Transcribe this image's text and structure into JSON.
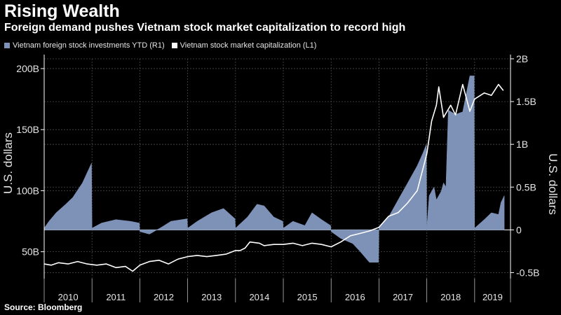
{
  "header": {
    "title": "Rising Wealth",
    "subtitle": "Foreign demand pushes Vietnam stock market capitalization to record high"
  },
  "footer": {
    "source": "Source: Bloomberg"
  },
  "colors": {
    "background": "#000000",
    "bars": "#7d92b6",
    "line": "#ffffff",
    "grid": "#4a4a4a",
    "text": "#e6e6e6"
  },
  "chart_data": {
    "type": "area",
    "legend": [
      {
        "label": "Vietnam foreign stock investments YTD (R1)",
        "color": "#7d92b6"
      },
      {
        "label": "Vietnam stock market capitalization (L1)",
        "color": "#ffffff"
      }
    ],
    "legend_position": "top-left",
    "grid": true,
    "x_ticks": [
      "2010",
      "2011",
      "2012",
      "2013",
      "2014",
      "2015",
      "2016",
      "2017",
      "2018",
      "2019"
    ],
    "xlim": [
      2010,
      2019.75
    ],
    "left_axis": {
      "label": "U.S. dollars",
      "ticks": [
        "50B",
        "100B",
        "150B",
        "200B"
      ],
      "ylim": [
        28,
        208
      ]
    },
    "right_axis": {
      "label": "U.S. dollars",
      "ticks": [
        "-0.5B",
        "0",
        "0.5B",
        "1B",
        "1.5B",
        "2B"
      ],
      "ylim": [
        -0.57,
        2.0
      ]
    },
    "series": [
      {
        "name": "Vietnam foreign stock investments YTD (R1)",
        "type": "area",
        "axis": "right",
        "x": [
          2010.0,
          2010.1,
          2010.25,
          2010.45,
          2010.6,
          2010.8,
          2010.99,
          2011.0,
          2011.2,
          2011.5,
          2011.8,
          2011.99,
          2012.0,
          2012.2,
          2012.45,
          2012.65,
          2012.99,
          2013.0,
          2013.2,
          2013.5,
          2013.75,
          2013.99,
          2014.0,
          2014.25,
          2014.45,
          2014.6,
          2014.8,
          2014.99,
          2015.0,
          2015.2,
          2015.45,
          2015.6,
          2015.8,
          2015.99,
          2016.0,
          2016.2,
          2016.45,
          2016.6,
          2016.8,
          2016.99,
          2017.0,
          2017.2,
          2017.4,
          2017.6,
          2017.8,
          2017.92,
          2017.99,
          2018.0,
          2018.05,
          2018.15,
          2018.2,
          2018.3,
          2018.35,
          2018.4,
          2018.45,
          2018.6,
          2018.75,
          2018.9,
          2018.99,
          2019.0,
          2019.2,
          2019.35,
          2019.5,
          2019.55,
          2019.62
        ],
        "values": [
          0.02,
          0.1,
          0.2,
          0.3,
          0.38,
          0.55,
          0.78,
          0.02,
          0.08,
          0.12,
          0.1,
          0.08,
          -0.02,
          -0.05,
          0.03,
          0.1,
          0.13,
          0.02,
          0.1,
          0.2,
          0.25,
          0.13,
          0.02,
          0.15,
          0.3,
          0.28,
          0.15,
          0.1,
          0.02,
          0.1,
          0.05,
          0.2,
          0.12,
          0.05,
          -0.02,
          -0.1,
          -0.16,
          -0.25,
          -0.38,
          -0.38,
          0.02,
          0.15,
          0.35,
          0.55,
          0.75,
          0.9,
          1.0,
          0.02,
          0.4,
          0.5,
          0.35,
          0.45,
          0.55,
          0.5,
          1.4,
          1.35,
          1.38,
          1.8,
          1.8,
          0.02,
          0.12,
          0.2,
          0.18,
          0.32,
          0.4
        ]
      },
      {
        "name": "Vietnam stock market capitalization (L1)",
        "type": "line",
        "axis": "left",
        "x": [
          2010.0,
          2010.15,
          2010.3,
          2010.5,
          2010.7,
          2010.9,
          2011.1,
          2011.3,
          2011.5,
          2011.7,
          2011.85,
          2012.0,
          2012.2,
          2012.4,
          2012.6,
          2012.8,
          2013.0,
          2013.2,
          2013.4,
          2013.6,
          2013.8,
          2014.0,
          2014.1,
          2014.2,
          2014.3,
          2014.5,
          2014.6,
          2014.8,
          2015.0,
          2015.2,
          2015.4,
          2015.6,
          2015.8,
          2016.0,
          2016.2,
          2016.4,
          2016.6,
          2016.8,
          2017.0,
          2017.2,
          2017.4,
          2017.6,
          2017.8,
          2018.0,
          2018.1,
          2018.2,
          2018.25,
          2018.35,
          2018.5,
          2018.6,
          2018.75,
          2018.9,
          2019.0,
          2019.2,
          2019.35,
          2019.5,
          2019.6
        ],
        "values": [
          40,
          39,
          41,
          40,
          42,
          40,
          39,
          40,
          37,
          38,
          34,
          39,
          42,
          43,
          40,
          44,
          46,
          47,
          46,
          47,
          48,
          51,
          51,
          53,
          58,
          57,
          55,
          56,
          56,
          57,
          55,
          57,
          56,
          54,
          58,
          63,
          65,
          67,
          70,
          79,
          82,
          90,
          100,
          130,
          157,
          170,
          185,
          160,
          170,
          162,
          187,
          165,
          175,
          180,
          178,
          187,
          182
        ]
      }
    ]
  }
}
